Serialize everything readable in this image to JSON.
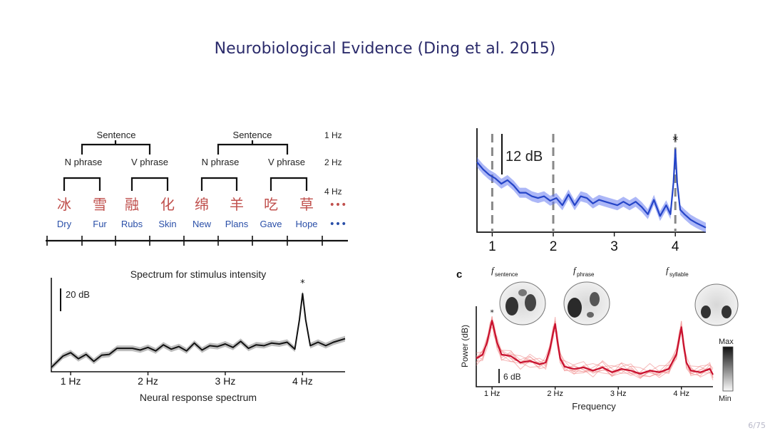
{
  "slide": {
    "title": "Neurobiological Evidence (Ding et al. 2015)",
    "page": "6/75",
    "colors": {
      "title": "#2b2b6b",
      "chinese": "#c0504d",
      "english": "#2a4fa8",
      "blue_line": "#2545c8",
      "red_line": "#c8102e"
    }
  },
  "stimulus": {
    "sentence_label": "Sentence",
    "n_phrase": "N phrase",
    "v_phrase": "V phrase",
    "rates": [
      "1 Hz",
      "2 Hz",
      "4 Hz"
    ],
    "chinese": [
      "冰",
      "雪",
      "融",
      "化",
      "绵",
      "羊",
      "吃",
      "草"
    ],
    "english": [
      "Dry",
      "Fur",
      "Rubs",
      "Skin",
      "New",
      "Plans",
      "Gave",
      "Hope"
    ],
    "ellipsis": "•••"
  },
  "chart_data": [
    {
      "type": "line",
      "title": "Spectrum for stimulus intensity",
      "xlabel": "Neural response spectrum",
      "ylabel": "",
      "scale_bar": "20 dB",
      "peak_marker": "*",
      "tick_labels": [
        "1 Hz",
        "2 Hz",
        "3 Hz",
        "4 Hz"
      ],
      "xlim": [
        0.75,
        4.55
      ],
      "ylim": [
        0,
        100
      ],
      "x": [
        0.75,
        0.9,
        1.0,
        1.1,
        1.2,
        1.3,
        1.4,
        1.5,
        1.6,
        1.7,
        1.8,
        1.9,
        2.0,
        2.1,
        2.2,
        2.3,
        2.4,
        2.5,
        2.6,
        2.7,
        2.8,
        2.9,
        3.0,
        3.1,
        3.2,
        3.3,
        3.4,
        3.5,
        3.6,
        3.7,
        3.8,
        3.9,
        3.96,
        4.0,
        4.04,
        4.1,
        4.2,
        4.3,
        4.4,
        4.55
      ],
      "values": [
        5,
        18,
        22,
        15,
        20,
        12,
        19,
        20,
        27,
        27,
        27,
        25,
        28,
        24,
        31,
        26,
        29,
        24,
        33,
        25,
        30,
        29,
        32,
        28,
        35,
        27,
        31,
        30,
        33,
        32,
        34,
        26,
        60,
        90,
        60,
        30,
        34,
        30,
        34,
        38
      ]
    },
    {
      "type": "line",
      "xlabel": "",
      "ylabel": "",
      "scale_bar": "12 dB",
      "peak_marker": "*",
      "tick_labels": [
        "1",
        "2",
        "3",
        "4"
      ],
      "dashed_x": [
        1,
        2,
        4
      ],
      "xlim": [
        0.75,
        4.5
      ],
      "ylim": [
        0,
        100
      ],
      "x": [
        0.75,
        0.85,
        0.95,
        1.05,
        1.15,
        1.25,
        1.35,
        1.45,
        1.55,
        1.65,
        1.75,
        1.85,
        1.95,
        2.05,
        2.15,
        2.25,
        2.35,
        2.45,
        2.55,
        2.65,
        2.75,
        2.85,
        2.95,
        3.05,
        3.15,
        3.25,
        3.35,
        3.45,
        3.55,
        3.65,
        3.75,
        3.85,
        3.92,
        3.97,
        4.0,
        4.03,
        4.08,
        4.15,
        4.25,
        4.35,
        4.5
      ],
      "values": [
        78,
        70,
        64,
        60,
        54,
        58,
        52,
        44,
        44,
        40,
        38,
        40,
        35,
        38,
        30,
        42,
        30,
        40,
        38,
        32,
        36,
        34,
        32,
        30,
        34,
        30,
        34,
        28,
        20,
        36,
        18,
        30,
        20,
        55,
        92,
        55,
        25,
        20,
        14,
        10,
        5
      ]
    },
    {
      "type": "line",
      "panel_label": "c",
      "xlabel": "Frequency",
      "ylabel": "Power (dB)",
      "scale_bar": "6 dB",
      "peak_marker": "*",
      "tick_labels": [
        "1 Hz",
        "2 Hz",
        "3 Hz",
        "4 Hz"
      ],
      "topo_labels": [
        {
          "main": "f",
          "sub": "sentence"
        },
        {
          "main": "f",
          "sub": "phrase"
        },
        {
          "main": "f",
          "sub": "syllable"
        }
      ],
      "colorbar": {
        "max": "Max",
        "min": "Min"
      },
      "xlim": [
        0.75,
        4.5
      ],
      "ylim": [
        0,
        100
      ],
      "x": [
        0.75,
        0.85,
        0.92,
        0.97,
        1.0,
        1.03,
        1.08,
        1.15,
        1.3,
        1.45,
        1.6,
        1.75,
        1.85,
        1.92,
        1.97,
        2.0,
        2.03,
        2.08,
        2.15,
        2.3,
        2.45,
        2.6,
        2.75,
        2.9,
        3.05,
        3.2,
        3.35,
        3.5,
        3.65,
        3.8,
        3.92,
        3.97,
        4.0,
        4.03,
        4.08,
        4.15,
        4.3,
        4.45,
        4.5
      ],
      "values": [
        35,
        40,
        55,
        72,
        82,
        72,
        55,
        40,
        38,
        30,
        32,
        28,
        30,
        48,
        68,
        78,
        60,
        35,
        25,
        22,
        24,
        20,
        24,
        18,
        22,
        20,
        16,
        20,
        18,
        22,
        40,
        62,
        74,
        55,
        30,
        20,
        18,
        22,
        15
      ]
    }
  ]
}
